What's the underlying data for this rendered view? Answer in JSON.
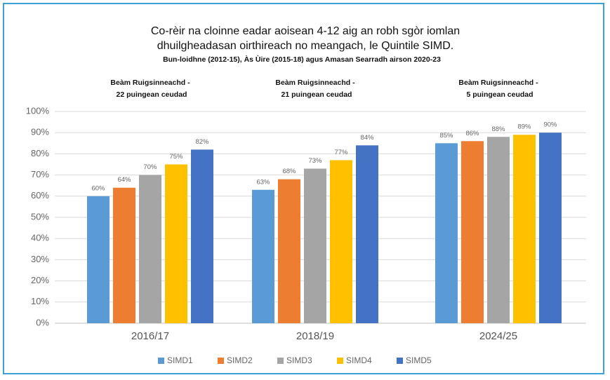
{
  "chart_data": {
    "type": "bar",
    "title": "Co-rèir na cloinne eadar aoisean 4-12 aig an robh sgòr iomlan dhuilgheadasan oirthireach no meangach, le Quintile SIMD.",
    "subtitle": "Bun-loidhne (2012-15), Às Ùire (2015-18) agus Amasan Searradh airson 2020-23",
    "annotations": [
      {
        "lines": [
          "Beàm Ruigsinneachd -",
          "22 puingean ceudad"
        ]
      },
      {
        "lines": [
          "Beàm Ruigsinneachd -",
          "21 puingean ceudad"
        ]
      },
      {
        "lines": [
          "Beàm Ruigsinneachd -",
          "5 puingean ceudad"
        ]
      }
    ],
    "categories": [
      "2016/17",
      "2018/19",
      "2024/25"
    ],
    "series": [
      {
        "name": "SIMD1",
        "color": "#5b9bd5",
        "values": [
          60,
          63,
          85
        ],
        "value_labels": [
          "60%",
          "63%",
          "85%"
        ]
      },
      {
        "name": "SIMD2",
        "color": "#ed7d31",
        "values": [
          64,
          68,
          86
        ],
        "value_labels": [
          "64%",
          "68%",
          "86%"
        ]
      },
      {
        "name": "SIMD3",
        "color": "#a5a5a5",
        "values": [
          70,
          73,
          88
        ],
        "value_labels": [
          "70%",
          "73%",
          "88%"
        ]
      },
      {
        "name": "SIMD4",
        "color": "#ffc000",
        "values": [
          75,
          77,
          89
        ],
        "value_labels": [
          "75%",
          "77%",
          "89%"
        ]
      },
      {
        "name": "SIMD5",
        "color": "#4472c4",
        "values": [
          82,
          84,
          90
        ],
        "value_labels": [
          "82%",
          "84%",
          "90%"
        ]
      }
    ],
    "ylim": [
      0,
      100
    ],
    "yticks": [
      {
        "value": 0,
        "label": "0%"
      },
      {
        "value": 10,
        "label": "10%"
      },
      {
        "value": 20,
        "label": "20%"
      },
      {
        "value": 30,
        "label": "30%"
      },
      {
        "value": 40,
        "label": "40%"
      },
      {
        "value": 50,
        "label": "50%"
      },
      {
        "value": 60,
        "label": "60%"
      },
      {
        "value": 70,
        "label": "70%"
      },
      {
        "value": 80,
        "label": "80%"
      },
      {
        "value": 90,
        "label": "90%"
      },
      {
        "value": 100,
        "label": "100%"
      }
    ],
    "grid": true,
    "legend": "bottom"
  }
}
